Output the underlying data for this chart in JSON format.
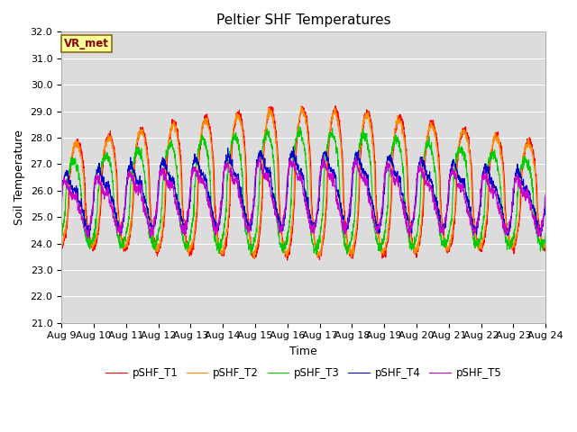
{
  "title": "Peltier SHF Temperatures",
  "xlabel": "Time",
  "ylabel": "Soil Temperature",
  "ylim": [
    21.0,
    32.0
  ],
  "yticks": [
    21.0,
    22.0,
    23.0,
    24.0,
    25.0,
    26.0,
    27.0,
    28.0,
    29.0,
    30.0,
    31.0,
    32.0
  ],
  "xtick_labels": [
    "Aug 9",
    "Aug 10",
    "Aug 11",
    "Aug 12",
    "Aug 13",
    "Aug 14",
    "Aug 15",
    "Aug 16",
    "Aug 17",
    "Aug 18",
    "Aug 19",
    "Aug 20",
    "Aug 21",
    "Aug 22",
    "Aug 23",
    "Aug 24"
  ],
  "colors": {
    "T1": "#FF0000",
    "T2": "#FF8C00",
    "T3": "#00CC00",
    "T4": "#0000CC",
    "T5": "#CC00CC"
  },
  "legend_labels": [
    "pSHF_T1",
    "pSHF_T2",
    "pSHF_T3",
    "pSHF_T4",
    "pSHF_T5"
  ],
  "annotation_text": "VR_met",
  "bg_color": "#DCDCDC",
  "title_fontsize": 11,
  "axis_fontsize": 9,
  "tick_fontsize": 8
}
